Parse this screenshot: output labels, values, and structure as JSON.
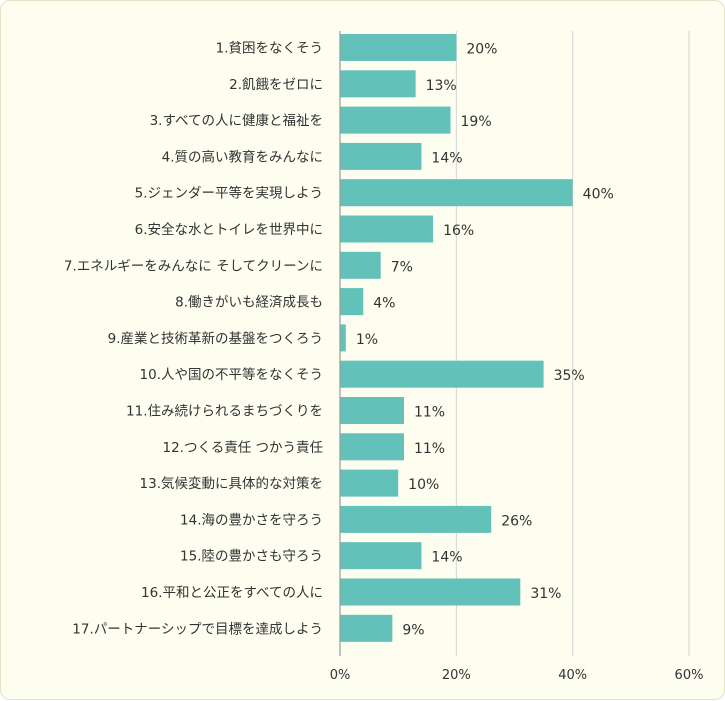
{
  "chart_data": {
    "type": "bar",
    "orientation": "horizontal",
    "categories": [
      "1.貧困をなくそう",
      "2.飢餓をゼロに",
      "3.すべての人に健康と福祉を",
      "4.質の高い教育をみんなに",
      "5.ジェンダー平等を実現しよう",
      "6.安全な水とトイレを世界中に",
      "7.エネルギーをみんなに そしてクリーンに",
      "8.働きがいも経済成長も",
      "9.産業と技術革新の基盤をつくろう",
      "10.人や国の不平等をなくそう",
      "11.住み続けられるまちづくりを",
      "12.つくる責任 つかう責任",
      "13.気候変動に具体的な対策を",
      "14.海の豊かさを守ろう",
      "15.陸の豊かさも守ろう",
      "16.平和と公正をすべての人に",
      "17.パートナーシップで目標を達成しよう"
    ],
    "values": [
      20,
      13,
      19,
      14,
      40,
      16,
      7,
      4,
      1,
      35,
      11,
      11,
      10,
      26,
      14,
      31,
      9
    ],
    "value_labels": [
      "20%",
      "13%",
      "19%",
      "14%",
      "40%",
      "16%",
      "7%",
      "4%",
      "1%",
      "35%",
      "11%",
      "11%",
      "10%",
      "26%",
      "14%",
      "31%",
      "9%"
    ],
    "xlim": [
      0,
      60
    ],
    "xticks": [
      0,
      20,
      40,
      60
    ],
    "xtick_labels": [
      "0%",
      "20%",
      "40%",
      "60%"
    ],
    "grid": true,
    "legend": "none",
    "colors": {
      "bar": "#62c1b9",
      "grid": "#d4d4d4",
      "axis": "#9a9a9a",
      "background": "#fdfdf0"
    }
  }
}
